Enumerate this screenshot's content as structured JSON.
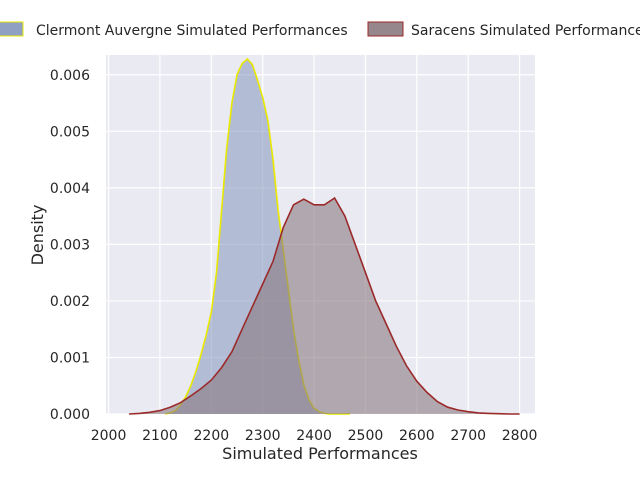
{
  "chart_data": {
    "type": "area",
    "title": "",
    "xlabel": "Simulated Performances",
    "ylabel": "Density",
    "xlim": [
      1995,
      2830
    ],
    "ylim": [
      0,
      0.00635
    ],
    "xticks": [
      2000,
      2100,
      2200,
      2300,
      2400,
      2500,
      2600,
      2700,
      2800
    ],
    "xtick_labels": [
      "2000",
      "2100",
      "2200",
      "2300",
      "2400",
      "2500",
      "2600",
      "2700",
      "2800"
    ],
    "yticks": [
      0,
      0.001,
      0.002,
      0.003,
      0.004,
      0.005,
      0.006
    ],
    "ytick_labels": [
      "0.000",
      "0.001",
      "0.002",
      "0.003",
      "0.004",
      "0.005",
      "0.006"
    ],
    "grid": true,
    "legend_position": "top",
    "background": "#eaeaf2",
    "series": [
      {
        "name": "Clermont Auvergne Simulated Performances",
        "fill": "#8496bc",
        "fill_opacity": 0.55,
        "stroke": "#e8e800",
        "x": [
          2110,
          2120,
          2130,
          2140,
          2150,
          2160,
          2170,
          2180,
          2190,
          2200,
          2210,
          2220,
          2230,
          2240,
          2250,
          2260,
          2270,
          2280,
          2290,
          2300,
          2310,
          2320,
          2330,
          2340,
          2350,
          2360,
          2370,
          2380,
          2390,
          2400,
          2410,
          2420,
          2430,
          2440,
          2450,
          2460,
          2470
        ],
        "y": [
          0.0,
          2e-05,
          6e-05,
          0.00016,
          0.0003,
          0.0005,
          0.00075,
          0.00105,
          0.0014,
          0.0018,
          0.0025,
          0.0036,
          0.0047,
          0.0055,
          0.006,
          0.0062,
          0.00628,
          0.00618,
          0.0059,
          0.0056,
          0.0052,
          0.0045,
          0.0036,
          0.0029,
          0.0022,
          0.0015,
          0.00095,
          0.00052,
          0.00025,
          0.0001,
          4e-05,
          1e-05,
          0.0,
          0.0,
          0.0,
          0.0,
          0.0
        ]
      },
      {
        "name": "Saracens Simulated Performance",
        "fill": "#8a7a80",
        "fill_opacity": 0.6,
        "stroke": "#9b2a2a",
        "x": [
          2040,
          2060,
          2080,
          2100,
          2120,
          2140,
          2160,
          2180,
          2200,
          2220,
          2240,
          2260,
          2280,
          2300,
          2320,
          2340,
          2360,
          2380,
          2400,
          2420,
          2440,
          2460,
          2480,
          2500,
          2520,
          2540,
          2560,
          2580,
          2600,
          2620,
          2640,
          2660,
          2680,
          2700,
          2720,
          2740,
          2760,
          2780,
          2800
        ],
        "y": [
          0.0,
          1e-05,
          3e-05,
          6e-05,
          0.00012,
          0.0002,
          0.00032,
          0.00045,
          0.0006,
          0.00082,
          0.0011,
          0.0015,
          0.0019,
          0.0023,
          0.0027,
          0.0033,
          0.0037,
          0.0038,
          0.0037,
          0.0037,
          0.00382,
          0.0035,
          0.003,
          0.0025,
          0.002,
          0.0016,
          0.0012,
          0.00085,
          0.00058,
          0.00038,
          0.00022,
          0.00012,
          7e-05,
          4e-05,
          2e-05,
          1e-05,
          5e-06,
          0.0,
          0.0
        ]
      }
    ]
  }
}
